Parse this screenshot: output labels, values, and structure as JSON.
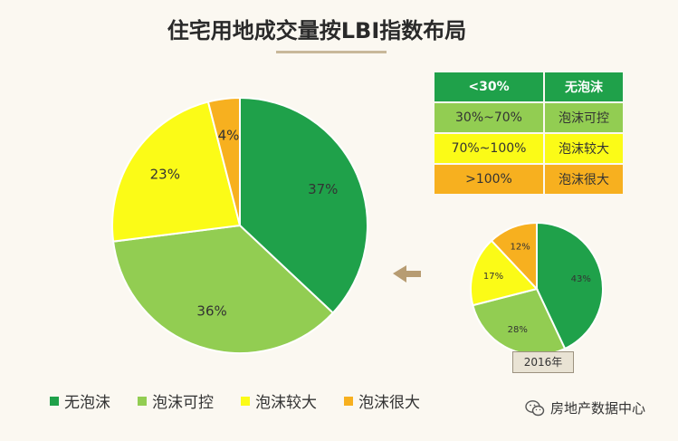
{
  "header": {
    "title": "住宅用地成交量按LBI指数布局"
  },
  "colors": {
    "no_bubble": "#1fa14a",
    "controllable": "#92cd52",
    "bigger": "#fbfb17",
    "very_big": "#f7b01f",
    "arrow": "#b79c72"
  },
  "legend_table": {
    "rows": [
      {
        "range": "<30%",
        "label": "无泡沫",
        "color": "#1fa14a",
        "header": true
      },
      {
        "range": "30%~70%",
        "label": "泡沫可控",
        "color": "#92cd52"
      },
      {
        "range": "70%~100%",
        "label": "泡沫较大",
        "color": "#fbfb17"
      },
      {
        "range": ">100%",
        "label": "泡沫很大",
        "color": "#f7b01f"
      }
    ]
  },
  "year_label": "2016年",
  "legend": {
    "items": [
      {
        "label": "无泡沫",
        "color": "#1fa14a"
      },
      {
        "label": "泡沫可控",
        "color": "#92cd52"
      },
      {
        "label": "泡沫较大",
        "color": "#fbfb17"
      },
      {
        "label": "泡沫很大",
        "color": "#f7b01f"
      }
    ]
  },
  "watermark": {
    "text": "房地产数据中心",
    "icon": "wechat-icon"
  },
  "chart_data": [
    {
      "type": "pie",
      "title": "",
      "categories": [
        "无泡沫",
        "泡沫可控",
        "泡沫较大",
        "泡沫很大"
      ],
      "values": [
        37,
        36,
        23,
        4
      ],
      "labels": [
        "37%",
        "36%",
        "23%",
        "4%"
      ],
      "colors": [
        "#1fa14a",
        "#92cd52",
        "#fbfb17",
        "#f7b01f"
      ],
      "legend_position": "bottom"
    },
    {
      "type": "pie",
      "title": "2016年",
      "categories": [
        "无泡沫",
        "泡沫可控",
        "泡沫较大",
        "泡沫很大"
      ],
      "values": [
        43,
        28,
        17,
        12
      ],
      "labels": [
        "43%",
        "28%",
        "17%",
        "12%"
      ],
      "colors": [
        "#1fa14a",
        "#92cd52",
        "#fbfb17",
        "#f7b01f"
      ]
    }
  ]
}
